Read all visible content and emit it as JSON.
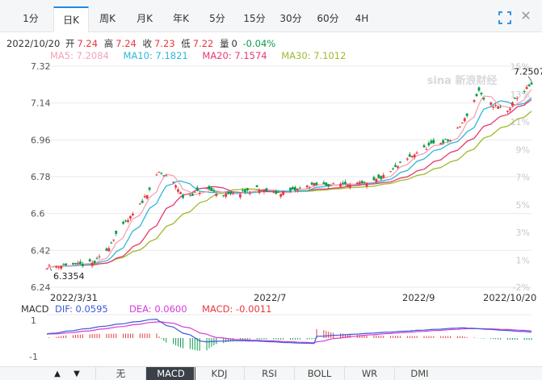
{
  "periods": {
    "tabs": [
      "1分",
      "日K",
      "周K",
      "月K",
      "年K",
      "5分",
      "15分",
      "30分",
      "60分",
      "4H"
    ],
    "active": "日K"
  },
  "info": {
    "date": "2022/10/20",
    "open_label": "开",
    "open": "7.24",
    "high_label": "高",
    "high": "7.24",
    "close_label": "收",
    "close": "7.23",
    "low_label": "低",
    "low": "7.22",
    "vol_label": "量",
    "vol": "0",
    "change": "-0.04%"
  },
  "ma": {
    "ma5": "MA5: 7.2084",
    "ma10": "MA10: 7.1821",
    "ma20": "MA20: 7.1574",
    "ma30": "MA30: 7.1012"
  },
  "watermark": "sina 新浪财经",
  "macd_info": {
    "label": "MACD",
    "dif": "DIF: 0.0595",
    "dea": "DEA: 0.0600",
    "macd": "MACD: -0.0011"
  },
  "indicators": {
    "up_arrow": "▲",
    "down_arrow": "▼",
    "tabs": [
      "无",
      "MACD",
      "KDJ",
      "RSI",
      "BOLL",
      "WR",
      "DMI"
    ],
    "active": "MACD"
  },
  "colors": {
    "up": "#e8383d",
    "down": "#0a9b4b",
    "ma5": "#f4a3b6",
    "ma10": "#2db7d9",
    "ma20": "#e8386d",
    "ma30": "#9cbb2c",
    "dif": "#3e5ad8",
    "dea": "#d63ad8",
    "grid": "#e8eaec",
    "accent": "#1e88e5"
  },
  "chart_data": {
    "type": "candlestick",
    "y_ticks": [
      "7.32",
      "7.14",
      "6.96",
      "6.78",
      "6.6",
      "6.42",
      "6.24"
    ],
    "ylim": [
      6.24,
      7.32
    ],
    "right_ticks": [
      "15%",
      "13%",
      "11%",
      "9%",
      "7%",
      "5%",
      "3%",
      "1%",
      "-2%"
    ],
    "x_labels": [
      "2022/3/31",
      "2022/7",
      "2022/9",
      "2022/10/20"
    ],
    "x_range": [
      "2022/3/31",
      "2022/10/20"
    ],
    "annotations": {
      "max": "7.2507",
      "min": "6.3354"
    },
    "macd_ticks": [
      "1",
      "-1"
    ],
    "close_path": [
      [
        "2022/3/31",
        6.34
      ],
      [
        "2022/4/8",
        6.35
      ],
      [
        "2022/4/15",
        6.35
      ],
      [
        "2022/4/20",
        6.36
      ],
      [
        "2022/4/25",
        6.42
      ],
      [
        "2022/4/29",
        6.5
      ],
      [
        "2022/5/5",
        6.58
      ],
      [
        "2022/5/9",
        6.64
      ],
      [
        "2022/5/13",
        6.72
      ],
      [
        "2022/5/17",
        6.8
      ],
      [
        "2022/5/20",
        6.78
      ],
      [
        "2022/5/24",
        6.74
      ],
      [
        "2022/5/27",
        6.68
      ],
      [
        "2022/6/1",
        6.7
      ],
      [
        "2022/6/6",
        6.72
      ],
      [
        "2022/6/10",
        6.7
      ],
      [
        "2022/6/15",
        6.69
      ],
      [
        "2022/6/20",
        6.7
      ],
      [
        "2022/6/27",
        6.72
      ],
      [
        "2022/7/5",
        6.7
      ],
      [
        "2022/7/12",
        6.71
      ],
      [
        "2022/7/20",
        6.74
      ],
      [
        "2022/7/28",
        6.74
      ],
      [
        "2022/8/5",
        6.75
      ],
      [
        "2022/8/12",
        6.74
      ],
      [
        "2022/8/19",
        6.78
      ],
      [
        "2022/8/26",
        6.84
      ],
      [
        "2022/9/2",
        6.9
      ],
      [
        "2022/9/9",
        6.94
      ],
      [
        "2022/9/16",
        6.96
      ],
      [
        "2022/9/22",
        7.06
      ],
      [
        "2022/9/28",
        7.2
      ],
      [
        "2022/9/30",
        7.15
      ],
      [
        "2022/10/10",
        7.1
      ],
      [
        "2022/10/14",
        7.17
      ],
      [
        "2022/10/20",
        7.23
      ]
    ]
  }
}
